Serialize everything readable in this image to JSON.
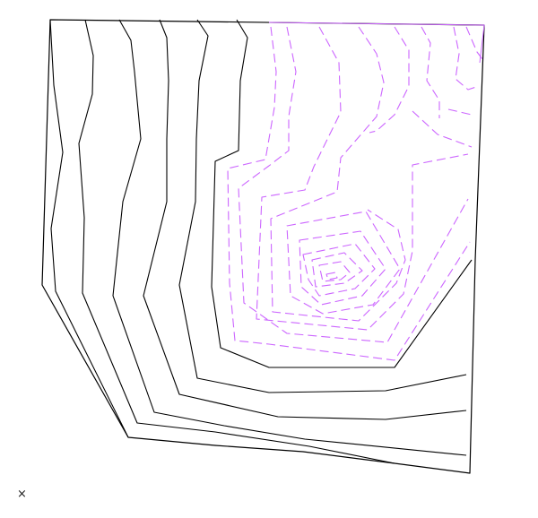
{
  "close_symbol": "×",
  "colors": {
    "solid_contour": "#000000",
    "dashed_contour": "#cc66ff",
    "background": "#ffffff"
  },
  "icons": {
    "close": "close-icon"
  }
}
